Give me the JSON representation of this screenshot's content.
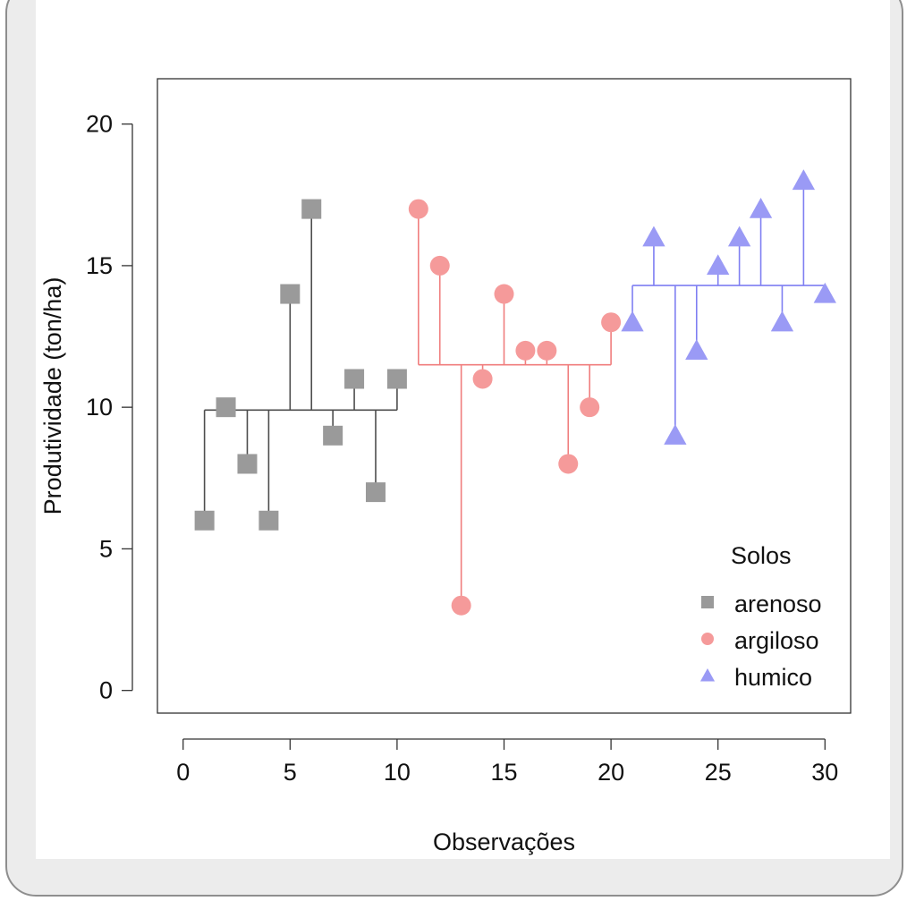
{
  "chart_data": {
    "type": "scatter",
    "title": "",
    "xlabel": "Observações",
    "ylabel": "Produtividade (ton/ha)",
    "xlim": [
      0,
      30
    ],
    "ylim": [
      0,
      20
    ],
    "x_ticks": [
      0,
      5,
      10,
      15,
      20,
      25,
      30
    ],
    "y_ticks": [
      0,
      5,
      10,
      15,
      20
    ],
    "grid": false,
    "legend": {
      "title": "Solos",
      "position": "bottom-right"
    },
    "series": [
      {
        "name": "arenoso",
        "marker": "square",
        "color": "#9a9a9a",
        "line_color": "#4d4d4d",
        "mean": 9.9,
        "x": [
          1,
          2,
          3,
          4,
          5,
          6,
          7,
          8,
          9,
          10
        ],
        "y": [
          6,
          10,
          8,
          6,
          14,
          17,
          9,
          11,
          7,
          11
        ]
      },
      {
        "name": "argiloso",
        "marker": "circle",
        "color": "#f59a9a",
        "line_color": "#f07e7e",
        "mean": 11.5,
        "x": [
          11,
          12,
          13,
          14,
          15,
          16,
          17,
          18,
          19,
          20
        ],
        "y": [
          17,
          15,
          3,
          11,
          14,
          12,
          12,
          8,
          10,
          13
        ]
      },
      {
        "name": "humico",
        "marker": "triangle",
        "color": "#9a9af5",
        "line_color": "#7f7ff2",
        "mean": 14.3,
        "x": [
          21,
          22,
          23,
          24,
          25,
          26,
          27,
          28,
          29,
          30
        ],
        "y": [
          13,
          16,
          9,
          12,
          15,
          16,
          17,
          13,
          18,
          14
        ]
      }
    ]
  }
}
